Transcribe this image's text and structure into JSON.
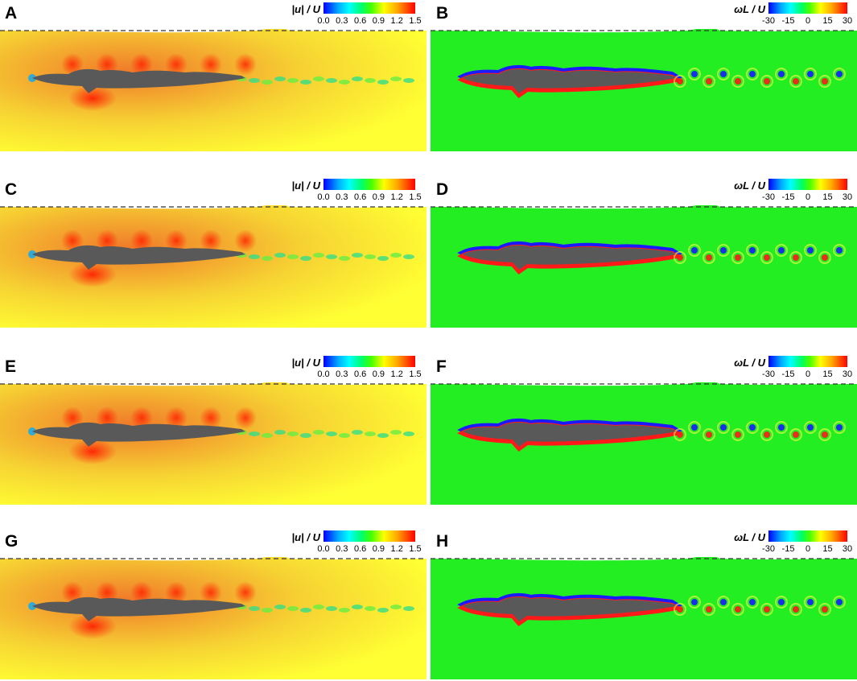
{
  "panels": [
    {
      "label": "A",
      "quantity": "|u| / U",
      "ticks": [
        "0.0",
        "0.3",
        "0.6",
        "0.9",
        "1.2",
        "1.5"
      ],
      "kind": "velocity"
    },
    {
      "label": "B",
      "quantity": "ωL / U",
      "ticks": [
        "-30",
        "-15",
        "0",
        "15",
        "30"
      ],
      "kind": "vorticity"
    },
    {
      "label": "C",
      "quantity": "|u| / U",
      "ticks": [
        "0.0",
        "0.3",
        "0.6",
        "0.9",
        "1.2",
        "1.5"
      ],
      "kind": "velocity"
    },
    {
      "label": "D",
      "quantity": "ωL / U",
      "ticks": [
        "-30",
        "-15",
        "0",
        "15",
        "30"
      ],
      "kind": "vorticity"
    },
    {
      "label": "E",
      "quantity": "|u| / U",
      "ticks": [
        "0.0",
        "0.3",
        "0.6",
        "0.9",
        "1.2",
        "1.5"
      ],
      "kind": "velocity"
    },
    {
      "label": "F",
      "quantity": "ωL / U",
      "ticks": [
        "-30",
        "-15",
        "0",
        "15",
        "30"
      ],
      "kind": "vorticity"
    },
    {
      "label": "G",
      "quantity": "|u| / U",
      "ticks": [
        "0.0",
        "0.3",
        "0.6",
        "0.9",
        "1.2",
        "1.5"
      ],
      "kind": "velocity"
    },
    {
      "label": "H",
      "quantity": "ωL / U",
      "ticks": [
        "-30",
        "-15",
        "0",
        "15",
        "30"
      ],
      "kind": "vorticity"
    }
  ],
  "colors": {
    "body": "#595959",
    "velocity_bg": "#f6d233",
    "velocity_hot": "#f07a2a",
    "velocity_cold": "#ffff33",
    "vorticity_bg": "#22ee22",
    "vort_pos": "#ff1a1a",
    "vort_neg": "#1a1aff",
    "free_surface": "#333333"
  }
}
